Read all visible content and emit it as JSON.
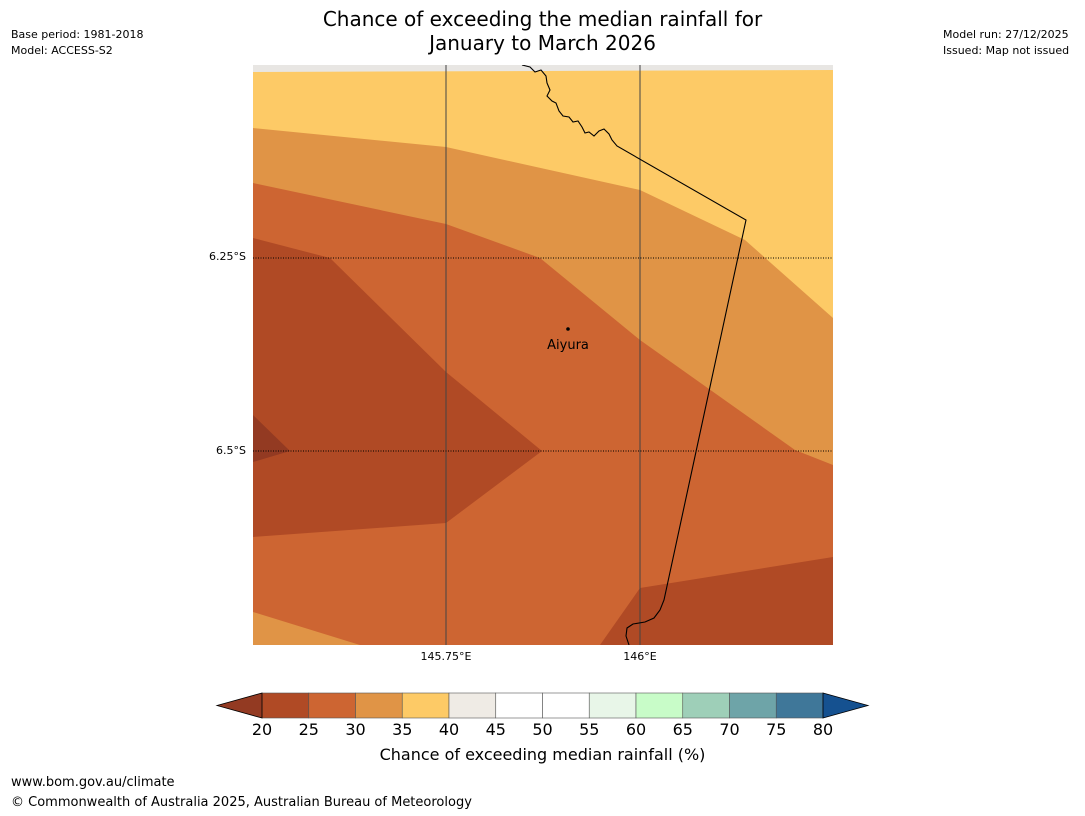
{
  "title": {
    "line1": "Chance of exceeding the median rainfall for",
    "line2": "January to March 2026"
  },
  "meta_left": {
    "base_period": "Base period: 1981-2018",
    "model": "Model: ACCESS-S2"
  },
  "meta_right": {
    "model_run": "Model run: 27/12/2025",
    "issued": "Issued: Map not issued"
  },
  "map": {
    "place": "Aiyura",
    "lat_labels": [
      "6.25°S",
      "6.5°S"
    ],
    "lon_labels": [
      "145.75°E",
      "146°E"
    ]
  },
  "colorbar": {
    "label": "Chance of exceeding median rainfall (%)",
    "ticks": [
      "20",
      "25",
      "30",
      "35",
      "40",
      "45",
      "50",
      "55",
      "60",
      "65",
      "70",
      "75",
      "80"
    ],
    "colors": [
      "#b04a25",
      "#cd6532",
      "#e09446",
      "#fdca66",
      "#efebe5",
      "#ffffff",
      "#ffffff",
      "#e8f6e8",
      "#c8fcc8",
      "#9ecfb8",
      "#6ea4a8",
      "#3f7799"
    ],
    "under_color": "#933a22",
    "over_color": "#155190"
  },
  "footer": {
    "url": "www.bom.gov.au/climate",
    "copyright": "© Commonwealth of Australia 2025, Australian Bureau of Meteorology"
  }
}
